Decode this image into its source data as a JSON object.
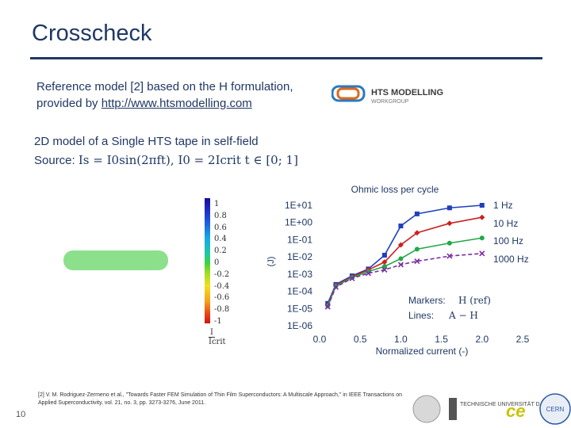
{
  "slide": {
    "title": "Crosscheck",
    "bullets": {
      "line1": "Reference model [2] based on the H formulation,",
      "line2_prefix": "provided by ",
      "line2_url": "http://www.htsmodelling.com",
      "line3": "2D model of a Single HTS tape in self-field",
      "line4_prefix": "Source: ",
      "line4_formula": "Is = I0sin(2πft), I0 = 2Icrit   t ∈ [0; 1]"
    },
    "logo": {
      "main": "HTS MODELLING",
      "sub": "WORKGROUP"
    },
    "colorbar": {
      "ticks": [
        "1",
        "0.8",
        "0.6",
        "0.4",
        "0.2",
        "0",
        "-0.2",
        "-0.4",
        "-0.6",
        "-0.8",
        "-1"
      ],
      "label_num": "I",
      "label_den": "Icrit"
    },
    "slide_number": "10",
    "footnote": "[2] V. M. Rodriguez-Zermeno et al., \"Towards Faster FEM Simulation of Thin Film Superconductors: A Multiscale Approach,\" in IEEE Transactions on Applied Superconductivity, vol. 21, no. 3, pp. 3273-3276, June 2011.",
    "footer_logos": [
      "TECHNISCHE UNIVERSITÄT DARMSTADT",
      "ce",
      "CERN"
    ]
  },
  "chart_data": {
    "type": "line",
    "title": "Ohmic loss per cycle",
    "xlabel": "Normalized current (-)",
    "ylabel": "(J)",
    "y_scale": "log",
    "xlim": [
      0.0,
      2.5
    ],
    "ylim_exp": [
      -6,
      1
    ],
    "x_ticks": [
      "0.0",
      "0.5",
      "1.0",
      "1.5",
      "2.0",
      "2.5"
    ],
    "y_ticks": [
      "1E+01",
      "1E+00",
      "1E-01",
      "1E-02",
      "1E-03",
      "1E-04",
      "1E-05",
      "1E-06"
    ],
    "legend_box": {
      "markers": "Markers:",
      "markers_val": "H (ref)",
      "lines": "Lines:",
      "lines_val": "A − H"
    },
    "series": [
      {
        "name": "1 Hz",
        "color": "#1f3fbf",
        "marker": "square",
        "x": [
          0.1,
          0.2,
          0.4,
          0.6,
          0.8,
          1.0,
          1.2,
          1.6,
          2.0
        ],
        "y_exp": [
          -4.7,
          -3.6,
          -3.1,
          -2.7,
          -1.9,
          -0.2,
          0.5,
          0.85,
          1.0
        ]
      },
      {
        "name": "10 Hz",
        "color": "#cc2020",
        "marker": "diamond",
        "x": [
          0.1,
          0.2,
          0.4,
          0.6,
          0.8,
          1.0,
          1.2,
          1.6,
          2.0
        ],
        "y_exp": [
          -4.8,
          -3.65,
          -3.15,
          -2.75,
          -2.3,
          -1.3,
          -0.6,
          -0.05,
          0.3
        ]
      },
      {
        "name": "100 Hz",
        "color": "#22a84a",
        "marker": "circle",
        "x": [
          0.1,
          0.2,
          0.4,
          0.6,
          0.8,
          1.0,
          1.2,
          1.6,
          2.0
        ],
        "y_exp": [
          -4.85,
          -3.7,
          -3.2,
          -2.85,
          -2.55,
          -2.1,
          -1.55,
          -1.2,
          -0.9
        ]
      },
      {
        "name": "1000 Hz",
        "color": "#7a2fa0",
        "marker": "cross",
        "x": [
          0.1,
          0.2,
          0.4,
          0.6,
          0.8,
          1.0,
          1.2,
          1.6,
          2.0
        ],
        "y_exp": [
          -4.9,
          -3.75,
          -3.25,
          -2.95,
          -2.75,
          -2.45,
          -2.25,
          -1.95,
          -1.8
        ]
      }
    ]
  }
}
